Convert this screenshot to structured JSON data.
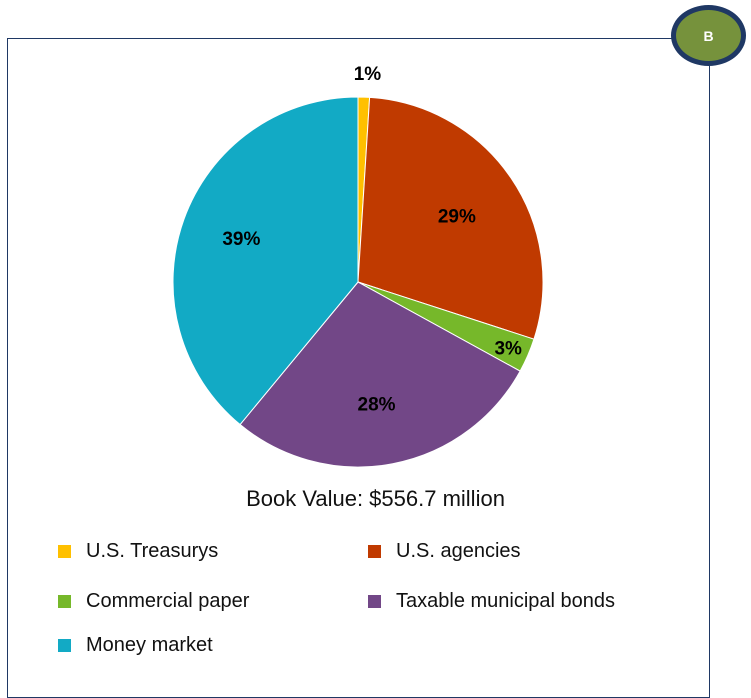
{
  "badge": {
    "label": "B"
  },
  "footer": {
    "book_value": "Book Value: $556.7 million"
  },
  "chart_data": {
    "type": "pie",
    "slices": [
      {
        "label": "U.S. Treasurys",
        "value": 1,
        "display": "1%",
        "color": "#ffc000"
      },
      {
        "label": "U.S. agencies",
        "value": 29,
        "display": "29%",
        "color": "#c03a00"
      },
      {
        "label": "Commercial paper",
        "value": 3,
        "display": "3%",
        "color": "#76b82a"
      },
      {
        "label": "Taxable municipal bonds",
        "value": 28,
        "display": "28%",
        "color": "#724787"
      },
      {
        "label": "Money market",
        "value": 39,
        "display": "39%",
        "color": "#12aac5"
      }
    ],
    "legend_placement": "bottom"
  }
}
